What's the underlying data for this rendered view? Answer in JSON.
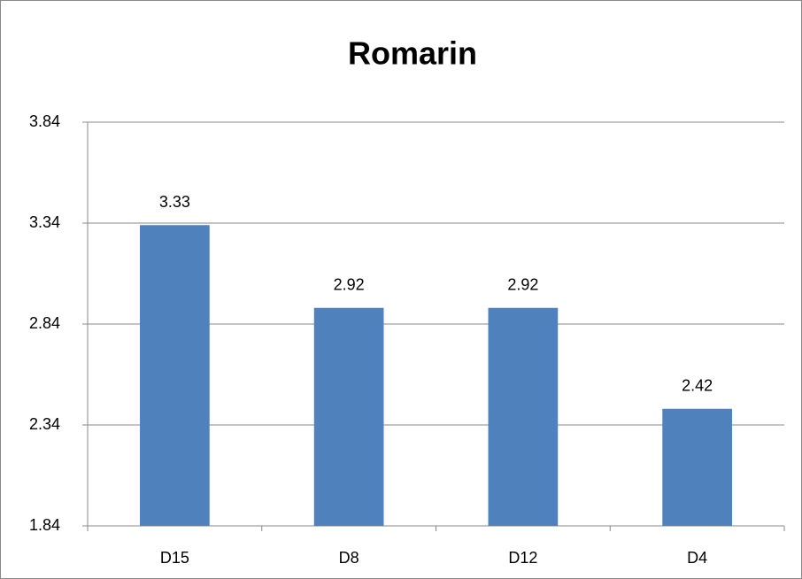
{
  "chart_data": {
    "type": "bar",
    "title": "Romarin",
    "categories": [
      "D15",
      "D8",
      "D12",
      "D4"
    ],
    "values": [
      3.33,
      2.92,
      2.92,
      2.42
    ],
    "color": "#4f81bd",
    "ylim": [
      1.84,
      3.84
    ],
    "yticks": [
      1.84,
      2.34,
      2.84,
      3.34,
      3.84
    ],
    "grid": true
  }
}
